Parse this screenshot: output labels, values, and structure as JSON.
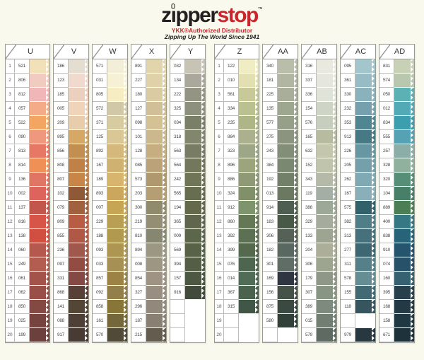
{
  "page": {
    "bg": "#FAF9EE"
  },
  "brand": {
    "word_pre": "z",
    "word_i": "ı",
    "word_mid": "pper",
    "word_accent": "stop",
    "tm": "™",
    "black": "#231F20",
    "red": "#C9252C",
    "subtitle": "YKK®Authorized Distributor",
    "tagline": "Zipping Up The World Since 1941"
  },
  "row_numbers": [
    "1",
    "2",
    "3",
    "4",
    "5",
    "6",
    "7",
    "8",
    "9",
    "10",
    "11",
    "12",
    "13",
    "14",
    "15",
    "16",
    "17",
    "18",
    "19",
    "20"
  ],
  "groups": [
    {
      "name": "left",
      "columns": [
        {
          "label": "U",
          "show_row_numbers": true,
          "rows": [
            [
              "521",
              "#F2DFB5"
            ],
            [
              "806",
              "#F2C9BE"
            ],
            [
              "812",
              "#EFB3B5"
            ],
            [
              "057",
              "#F3A983"
            ],
            [
              "522",
              "#F2A25A"
            ],
            [
              "090",
              "#EE9478"
            ],
            [
              "813",
              "#E77260"
            ],
            [
              "814",
              "#EE8C4F"
            ],
            [
              "136",
              "#DF6F5E"
            ],
            [
              "002",
              "#DA5E55"
            ],
            [
              "137",
              "#BF4F44"
            ],
            [
              "816",
              "#D44E40"
            ],
            [
              "138",
              "#CE4839"
            ],
            [
              "060",
              "#B25246"
            ],
            [
              "249",
              "#B05549"
            ],
            [
              "061",
              "#9F4C43"
            ],
            [
              "062",
              "#95483F"
            ],
            [
              "850",
              "#7E413A"
            ],
            [
              "025",
              "#703B36"
            ],
            [
              "199",
              "#653835"
            ]
          ]
        },
        {
          "label": "V",
          "show_row_numbers": false,
          "rows": [
            [
              "186",
              "#E2DCCE"
            ],
            [
              "123",
              "#EFD9CB"
            ],
            [
              "185",
              "#EACFBA"
            ],
            [
              "005",
              "#F0D2B6"
            ],
            [
              "209",
              "#E7CBA9"
            ],
            [
              "895",
              "#D3A560"
            ],
            [
              "856",
              "#BF8A49"
            ],
            [
              "808",
              "#BC7C3E"
            ],
            [
              "807",
              "#C68040"
            ],
            [
              "102",
              "#8A5230"
            ],
            [
              "079",
              "#9D5A36"
            ],
            [
              "809",
              "#B5563B"
            ],
            [
              "855",
              "#AC513E"
            ],
            [
              "236",
              "#9D5144"
            ],
            [
              "097",
              "#8E443A"
            ],
            [
              "331",
              "#7F413B"
            ],
            [
              "868",
              "#50392F"
            ],
            [
              "141",
              "#4C3E2C"
            ],
            [
              "088",
              "#46382E"
            ],
            [
              "917",
              "#3F332B"
            ]
          ]
        },
        {
          "label": "W",
          "show_row_numbers": false,
          "rows": [
            [
              "571",
              "#F2EDD6"
            ],
            [
              "031",
              "#F5F0D3"
            ],
            [
              "805",
              "#F5ECC0"
            ],
            [
              "572",
              "#CFC6A4"
            ],
            [
              "371",
              "#D5C99E"
            ],
            [
              "125",
              "#D9C592"
            ],
            [
              "892",
              "#D3B576"
            ],
            [
              "167",
              "#CDAF6C"
            ],
            [
              "189",
              "#D5B268"
            ],
            [
              "893",
              "#C9A256"
            ],
            [
              "007",
              "#C4A24E"
            ],
            [
              "229",
              "#B69B4D"
            ],
            [
              "188",
              "#AE9549"
            ],
            [
              "093",
              "#A8914B"
            ],
            [
              "033",
              "#A28C4D"
            ],
            [
              "857",
              "#987E3D"
            ],
            [
              "092",
              "#8E7A41"
            ],
            [
              "858",
              "#827030"
            ],
            [
              "161",
              "#6D6133"
            ],
            [
              "570",
              "#4A4231"
            ]
          ]
        },
        {
          "label": "X",
          "show_row_numbers": false,
          "rows": [
            [
              "891",
              "#E0D3A8"
            ],
            [
              "227",
              "#DED0A5"
            ],
            [
              "180",
              "#D8C99E"
            ],
            [
              "127",
              "#CFBD93"
            ],
            [
              "098",
              "#D2BF90"
            ],
            [
              "101",
              "#C9B587"
            ],
            [
              "128",
              "#C3AA7B"
            ],
            [
              "085",
              "#B89E73"
            ],
            [
              "573",
              "#AD9467"
            ],
            [
              "203",
              "#B29A6D"
            ],
            [
              "300",
              "#8C8667"
            ],
            [
              "219",
              "#8F8A6E"
            ],
            [
              "810",
              "#82826B"
            ],
            [
              "894",
              "#97937D"
            ],
            [
              "008",
              "#99917D"
            ],
            [
              "854",
              "#9B8F7F"
            ],
            [
              "327",
              "#95897D"
            ],
            [
              "296",
              "#8E8377"
            ],
            [
              "187",
              "#847A6D"
            ],
            [
              "215",
              "#5D5548"
            ]
          ]
        },
        {
          "label": "Y",
          "show_row_numbers": false,
          "rows": [
            [
              "032",
              "#C5C1B3"
            ],
            [
              "134",
              "#A7A599"
            ],
            [
              "222",
              "#8F9080"
            ],
            [
              "325",
              "#898B79"
            ],
            [
              "034",
              "#757A61"
            ],
            [
              "318",
              "#7D8167"
            ],
            [
              "563",
              "#72775D"
            ],
            [
              "564",
              "#6D7255"
            ],
            [
              "242",
              "#6A6F51"
            ],
            [
              "565",
              "#616749"
            ],
            [
              "194",
              "#5D6345"
            ],
            [
              "365",
              "#596047"
            ],
            [
              "009",
              "#555F43"
            ],
            [
              "569",
              "#515B3F"
            ],
            [
              "394",
              "#4D563D"
            ],
            [
              "157",
              "#455139"
            ],
            [
              "916",
              "#394333"
            ],
            [
              "",
              ""
            ],
            [
              "",
              ""
            ],
            [
              "",
              ""
            ]
          ]
        }
      ]
    },
    {
      "name": "right",
      "columns": [
        {
          "label": "Z",
          "show_row_numbers": true,
          "rows": [
            [
              "122",
              "#EFEBC2"
            ],
            [
              "010",
              "#E1DFB0"
            ],
            [
              "561",
              "#C5C795"
            ],
            [
              "334",
              "#B7BD8B"
            ],
            [
              "235",
              "#AAB281"
            ],
            [
              "884",
              "#A8AD8A"
            ],
            [
              "323",
              "#99A282"
            ],
            [
              "896",
              "#97A075"
            ],
            [
              "886",
              "#8C956F"
            ],
            [
              "324",
              "#7D8B63"
            ],
            [
              "912",
              "#799067"
            ],
            [
              "860",
              "#5D724F"
            ],
            [
              "392",
              "#556B4D"
            ],
            [
              "399",
              "#4D6347"
            ],
            [
              "076",
              "#475F49"
            ],
            [
              "014",
              "#49654F"
            ],
            [
              "367",
              "#425B47"
            ],
            [
              "315",
              "#394F3F"
            ],
            [
              "",
              ""
            ],
            [
              "",
              ""
            ]
          ]
        },
        {
          "label": "AA",
          "show_row_numbers": false,
          "rows": [
            [
              "340",
              "#B5BBA7"
            ],
            [
              "181",
              "#ADB39D"
            ],
            [
              "225",
              "#A4AB95"
            ],
            [
              "135",
              "#99A38B"
            ],
            [
              "577",
              "#919B85"
            ],
            [
              "275",
              "#859079"
            ],
            [
              "243",
              "#7D8971"
            ],
            [
              "384",
              "#75826B"
            ],
            [
              "192",
              "#6D7B63"
            ],
            [
              "013",
              "#65735B"
            ],
            [
              "914",
              "#46584B"
            ],
            [
              "183",
              "#41523F"
            ],
            [
              "306",
              "#4E5A4F"
            ],
            [
              "182",
              "#52625A"
            ],
            [
              "301",
              "#596760"
            ],
            [
              "169",
              "#262E39"
            ],
            [
              "156",
              "#3D4B43"
            ],
            [
              "875",
              "#32423A"
            ],
            [
              "580",
              "#2A3832"
            ],
            [
              "",
              ""
            ]
          ]
        },
        {
          "label": "AB",
          "show_row_numbers": false,
          "rows": [
            [
              "316",
              "#E8E8DF"
            ],
            [
              "337",
              "#E4E6DC"
            ],
            [
              "336",
              "#DEE2D6"
            ],
            [
              "154",
              "#CCD2C3"
            ],
            [
              "576",
              "#C5CCBB"
            ],
            [
              "165",
              "#B4B89B"
            ],
            [
              "632",
              "#C1C3AB"
            ],
            [
              "152",
              "#BDC1A9"
            ],
            [
              "343",
              "#B1B7A3"
            ],
            [
              "119",
              "#A1ABA0"
            ],
            [
              "388",
              "#99A495"
            ],
            [
              "329",
              "#A1A999"
            ],
            [
              "133",
              "#99A18D"
            ],
            [
              "204",
              "#A9AB95"
            ],
            [
              "306",
              "#99A08B"
            ],
            [
              "179",
              "#899383"
            ],
            [
              "307",
              "#838F7F"
            ],
            [
              "389",
              "#798579"
            ],
            [
              "015",
              "#6D796D"
            ],
            [
              "579",
              "#57645B"
            ]
          ]
        },
        {
          "label": "AC",
          "show_row_numbers": false,
          "rows": [
            [
              "095",
              "#9FC3CB"
            ],
            [
              "361",
              "#93B9C3"
            ],
            [
              "330",
              "#85AFBA"
            ],
            [
              "232",
              "#6F9DAC"
            ],
            [
              "353",
              "#49818E"
            ],
            [
              "913",
              "#3E737F"
            ],
            [
              "226",
              "#62929E"
            ],
            [
              "205",
              "#6E9CA8"
            ],
            [
              "262",
              "#7AA6B0"
            ],
            [
              "167",
              "#84ACB6"
            ],
            [
              "575",
              "#2A5A66"
            ],
            [
              "382",
              "#487884"
            ],
            [
              "313",
              "#3E6A74"
            ],
            [
              "277",
              "#35616C"
            ],
            [
              "311",
              "#4E7A84"
            ],
            [
              "578",
              "#5E8890"
            ],
            [
              "155",
              "#3A646E"
            ],
            [
              "118",
              "#2E4E58"
            ],
            [
              "",
              ""
            ],
            [
              "979",
              "#1E3038"
            ]
          ]
        },
        {
          "label": "AD",
          "show_row_numbers": false,
          "rows": [
            [
              "831",
              "#C6CEB2"
            ],
            [
              "574",
              "#B7C5AC"
            ],
            [
              "050",
              "#55AEB2"
            ],
            [
              "012",
              "#4AA6B2"
            ],
            [
              "834",
              "#359AAC"
            ],
            [
              "555",
              "#4E9EB2"
            ],
            [
              "257",
              "#86ABA4"
            ],
            [
              "328",
              "#8CAE99"
            ],
            [
              "320",
              "#4F8A71"
            ],
            [
              "104",
              "#3F7A63"
            ],
            [
              "889",
              "#44784E"
            ],
            [
              "400",
              "#2E7380"
            ],
            [
              "838",
              "#1E5E74"
            ],
            [
              "910",
              "#1C4E68"
            ],
            [
              "074",
              "#1E4A62"
            ],
            [
              "160",
              "#2E5A6A"
            ],
            [
              "395",
              "#1E3844"
            ],
            [
              "168",
              "#1A323C"
            ],
            [
              "158",
              "#16303A"
            ],
            [
              "671",
              "#142A34"
            ]
          ]
        }
      ]
    }
  ]
}
